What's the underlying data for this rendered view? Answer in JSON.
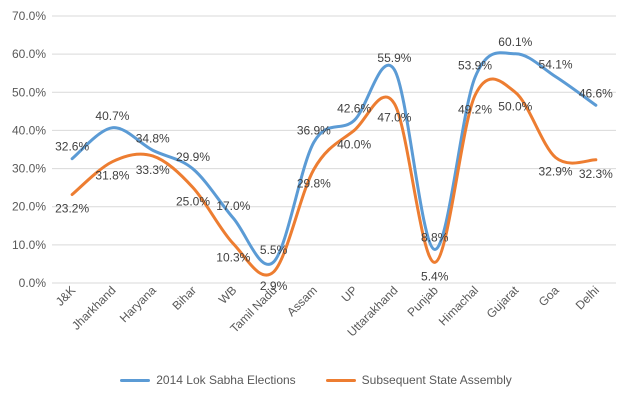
{
  "chart_data": {
    "type": "line",
    "title": "",
    "xlabel": "",
    "ylabel": "",
    "ylim": [
      0,
      70
    ],
    "ytick_step": 10,
    "ytick_labels": [
      "0.0%",
      "10.0%",
      "20.0%",
      "30.0%",
      "40.0%",
      "50.0%",
      "60.0%",
      "70.0%"
    ],
    "grid": true,
    "legend_position": "bottom",
    "categories": [
      "J&K",
      "Jharkhand",
      "Haryana",
      "Bihar",
      "WB",
      "Tamil Nadu",
      "Assam",
      "UP",
      "Uttarakhand",
      "Punjab",
      "Himachal",
      "Gujarat",
      "Goa",
      "Delhi"
    ],
    "series": [
      {
        "name": "2014 Lok Sabha Elections",
        "color": "#5B9BD5",
        "values": [
          32.6,
          40.7,
          34.8,
          29.9,
          17.0,
          5.5,
          36.9,
          42.6,
          55.9,
          8.8,
          53.9,
          60.1,
          54.1,
          46.6
        ],
        "labels": [
          "32.6%",
          "40.7%",
          "34.8%",
          "29.9%",
          "17.0%",
          "5.5%",
          "36.9%",
          "42.6%",
          "55.9%",
          "8.8%",
          "53.9%",
          "60.1%",
          "54.1%",
          "46.6%"
        ]
      },
      {
        "name": "Subsequent State Assembly",
        "color": "#ED7D31",
        "values": [
          23.2,
          31.8,
          33.3,
          25.0,
          10.3,
          2.9,
          29.8,
          40.0,
          47.0,
          5.4,
          49.2,
          50.0,
          32.9,
          32.3
        ],
        "labels": [
          "23.2%",
          "31.8%",
          "33.3%",
          "25.0%",
          "10.3%",
          "2.9%",
          "29.8%",
          "40.0%",
          "47.0%",
          "5.4%",
          "49.2%",
          "50.0%",
          "32.9%",
          "32.3%"
        ]
      }
    ]
  }
}
